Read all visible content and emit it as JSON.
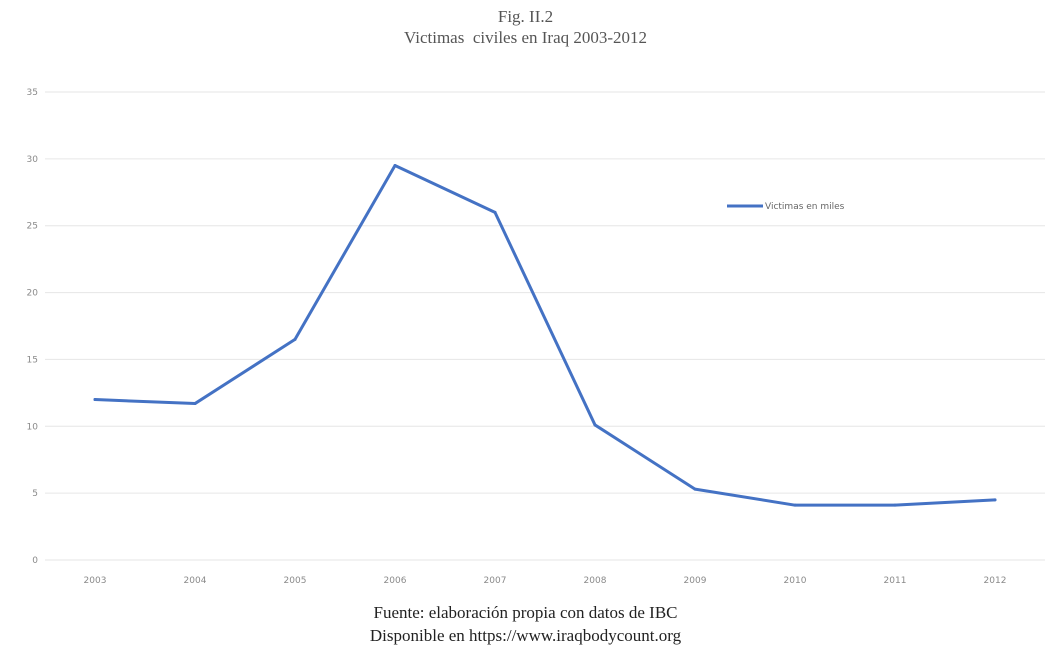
{
  "chart_data": {
    "type": "line",
    "title": "Fig. II.2",
    "subtitle": "Victimas  civiles en Iraq 2003-2012",
    "xlabel": "",
    "ylabel": "",
    "categories": [
      "2003",
      "2004",
      "2005",
      "2006",
      "2007",
      "2008",
      "2009",
      "2010",
      "2011",
      "2012"
    ],
    "series": [
      {
        "name": "Victimas en miles",
        "values": [
          12.0,
          11.7,
          16.5,
          29.5,
          26.0,
          10.1,
          5.3,
          4.1,
          4.1,
          4.5
        ]
      }
    ],
    "ylim": [
      0,
      35
    ],
    "yticks": [
      0,
      5,
      10,
      15,
      20,
      25,
      30,
      35
    ],
    "grid": true,
    "legend": "upper right inside plot",
    "colors": {
      "series": "#4472C4",
      "grid": "#e6e6e6"
    }
  },
  "footer": {
    "line1": "Fuente: elaboración propia con datos de IBC",
    "line2": "Disponible en https://www.iraqbodycount.org"
  }
}
